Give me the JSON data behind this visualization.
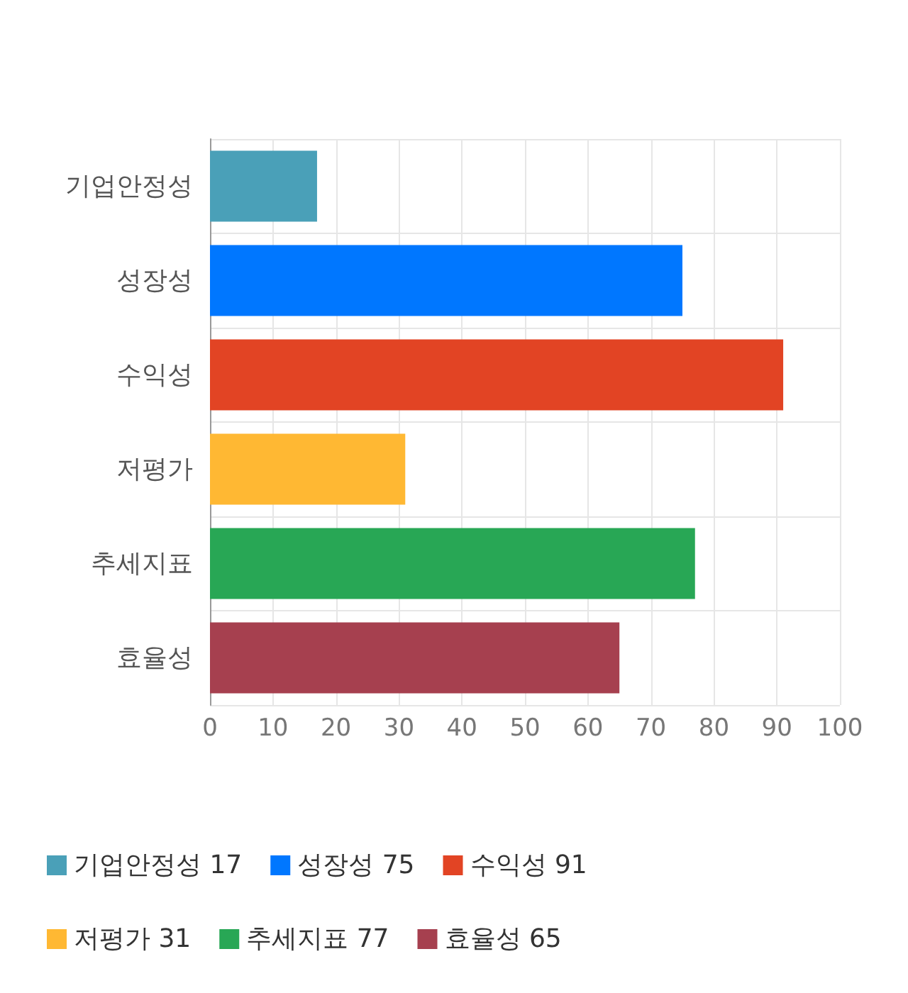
{
  "chart_data": {
    "type": "bar",
    "orientation": "horizontal",
    "stacked": true,
    "categories": [
      "기업안정성",
      "성장성",
      "수익성",
      "저평가",
      "추세지표",
      "효율성"
    ],
    "series": [
      {
        "name": "기업안정성 17",
        "color": "#4aa0b8",
        "values": [
          17,
          null,
          null,
          null,
          null,
          null
        ]
      },
      {
        "name": "성장성 75",
        "color": "#0077ff",
        "values": [
          null,
          75,
          null,
          null,
          null,
          null
        ]
      },
      {
        "name": "수익성 91",
        "color": "#e24424",
        "values": [
          null,
          null,
          91,
          null,
          null,
          null
        ]
      },
      {
        "name": "저평가 31",
        "color": "#ffb833",
        "values": [
          null,
          null,
          null,
          31,
          null,
          null
        ]
      },
      {
        "name": "추세지표 77",
        "color": "#28a755",
        "values": [
          null,
          null,
          null,
          null,
          77,
          null
        ]
      },
      {
        "name": "효율성 65",
        "color": "#a6404f",
        "values": [
          null,
          null,
          null,
          null,
          null,
          65
        ]
      }
    ],
    "xlim": [
      0,
      100
    ],
    "xticks": [
      0,
      10,
      20,
      30,
      40,
      50,
      60,
      70,
      80,
      90,
      100
    ],
    "grid": true,
    "legend": "bottom"
  }
}
